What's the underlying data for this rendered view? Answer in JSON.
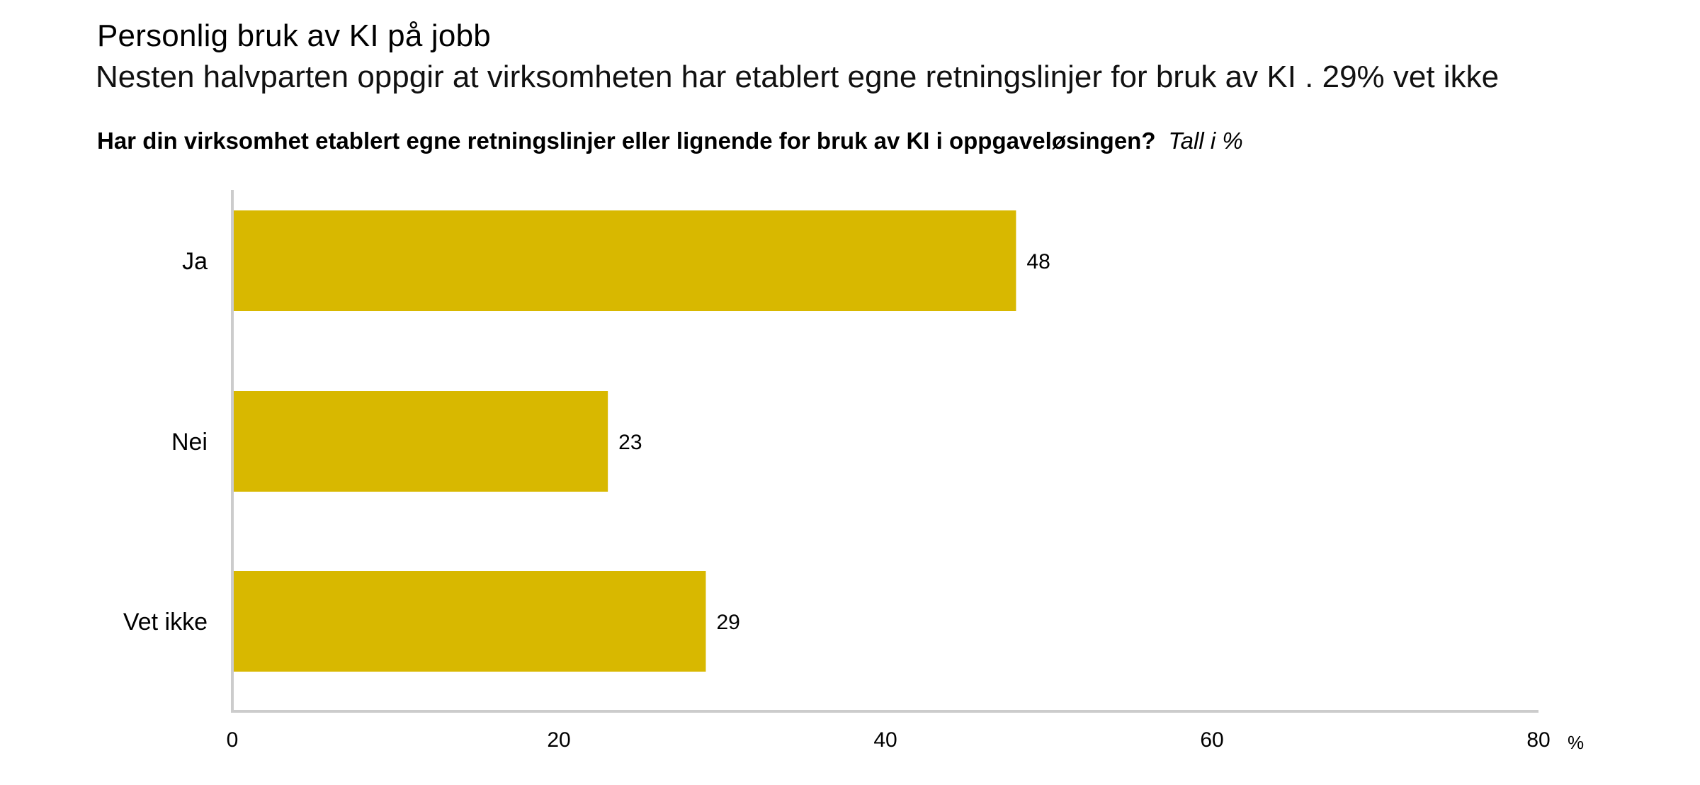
{
  "header": {
    "title": "Personlig bruk av KI på jobb",
    "subtitle": "Nesten halvparten oppgir at virksomheten har etablert egne retningslinjer for bruk av KI . 29% vet ikke",
    "question": "Har din virksomhet etablert egne retningslinjer eller lignende for bruk av KI i oppgaveløsingen?",
    "unit_note": "Tall i %"
  },
  "chart_data": {
    "type": "bar",
    "orientation": "horizontal",
    "categories": [
      "Ja",
      "Nei",
      "Vet ikke"
    ],
    "values": [
      48,
      23,
      29
    ],
    "xlim": [
      0,
      80
    ],
    "xticks": [
      0,
      20,
      40,
      60,
      80
    ],
    "xlabel": "%",
    "grid": false,
    "bar_color": "#d8b800",
    "axis_color": "#cccccc"
  }
}
